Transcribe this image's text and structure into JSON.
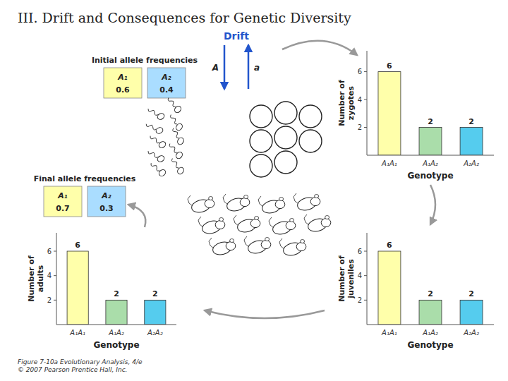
{
  "title": "III. Drift and Consequences for Genetic Diversity",
  "chart_data": [
    {
      "type": "bar",
      "ylabel": "Number of\nzygotes",
      "xlabel": "Genotype",
      "categories": [
        "A₁A₁",
        "A₁A₂",
        "A₂A₂"
      ],
      "values": [
        6,
        2,
        2
      ],
      "colors": [
        "#ffffaa",
        "#aaddaa",
        "#55ccee"
      ],
      "ylim": [
        0,
        7.5
      ],
      "yticks": [
        2,
        4,
        6
      ],
      "data_labels": true,
      "grid": false
    },
    {
      "type": "bar",
      "ylabel": "Number of\nadults",
      "xlabel": "Genotype",
      "categories": [
        "A₁A₁",
        "A₁A₂",
        "A₂A₂"
      ],
      "values": [
        6,
        2,
        2
      ],
      "colors": [
        "#ffffaa",
        "#aaddaa",
        "#55ccee"
      ],
      "ylim": [
        0,
        7.5
      ],
      "yticks": [
        2,
        4,
        6
      ],
      "data_labels": true,
      "grid": false
    },
    {
      "type": "bar",
      "ylabel": "Number of\njuveniles",
      "xlabel": "Genotype",
      "categories": [
        "A₁A₁",
        "A₁A₂",
        "A₂A₂"
      ],
      "values": [
        6,
        2,
        2
      ],
      "colors": [
        "#ffffaa",
        "#aaddaa",
        "#55ccee"
      ],
      "ylim": [
        0,
        7.5
      ],
      "yticks": [
        2,
        4,
        6
      ],
      "data_labels": true,
      "grid": false
    }
  ],
  "annotations": [
    {
      "text": "Initial allele frequencies",
      "alleles": [
        {
          "label": "A₁",
          "value": 0.6,
          "color": "#ffffaa"
        },
        {
          "label": "A₂",
          "value": 0.4,
          "color": "#aaddff"
        }
      ]
    },
    {
      "text": "Final allele frequencies",
      "alleles": [
        {
          "label": "A₁",
          "value": 0.7,
          "color": "#ffffaa"
        },
        {
          "label": "A₂",
          "value": 0.3,
          "color": "#aaddff"
        }
      ]
    },
    {
      "text": "Drift",
      "color": "#2255cc",
      "labels": [
        "A",
        "a"
      ]
    },
    {
      "text": "Figure 7-10a  Evolutionary Analysis, 4/e\n© 2007 Pearson Prentice Hall, Inc."
    }
  ]
}
